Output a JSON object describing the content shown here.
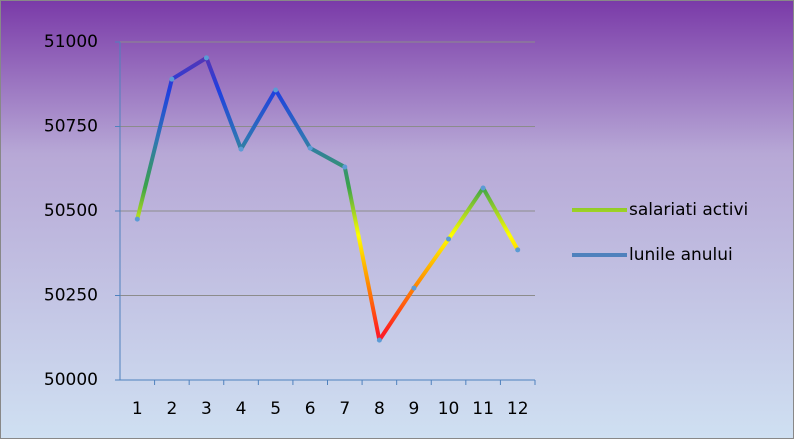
{
  "chart_data": {
    "type": "line",
    "categories": [
      "1",
      "2",
      "3",
      "4",
      "5",
      "6",
      "7",
      "8",
      "9",
      "10",
      "11",
      "12"
    ],
    "series": [
      {
        "name": "salariati activi",
        "color": "#7030a0",
        "gradient": [
          "#7030a0",
          "#1f3fe0",
          "#2e75b6",
          "#3aa34a",
          "#ffff00",
          "#ff8c00",
          "#ff2020",
          "#e0107a"
        ],
        "values": [
          50476,
          50890,
          50953,
          50683,
          50858,
          50686,
          50630,
          50118,
          50272,
          50417,
          50568,
          50385
        ]
      },
      {
        "name": "lunile anului",
        "color": "#4f81bd",
        "values": [
          null,
          null,
          null,
          null,
          null,
          null,
          null,
          null,
          null,
          null,
          null,
          null
        ]
      }
    ],
    "ylim": [
      50000,
      51000
    ],
    "yticks": [
      50000,
      50250,
      50500,
      50750,
      51000
    ],
    "grid": true,
    "legend": "right"
  }
}
